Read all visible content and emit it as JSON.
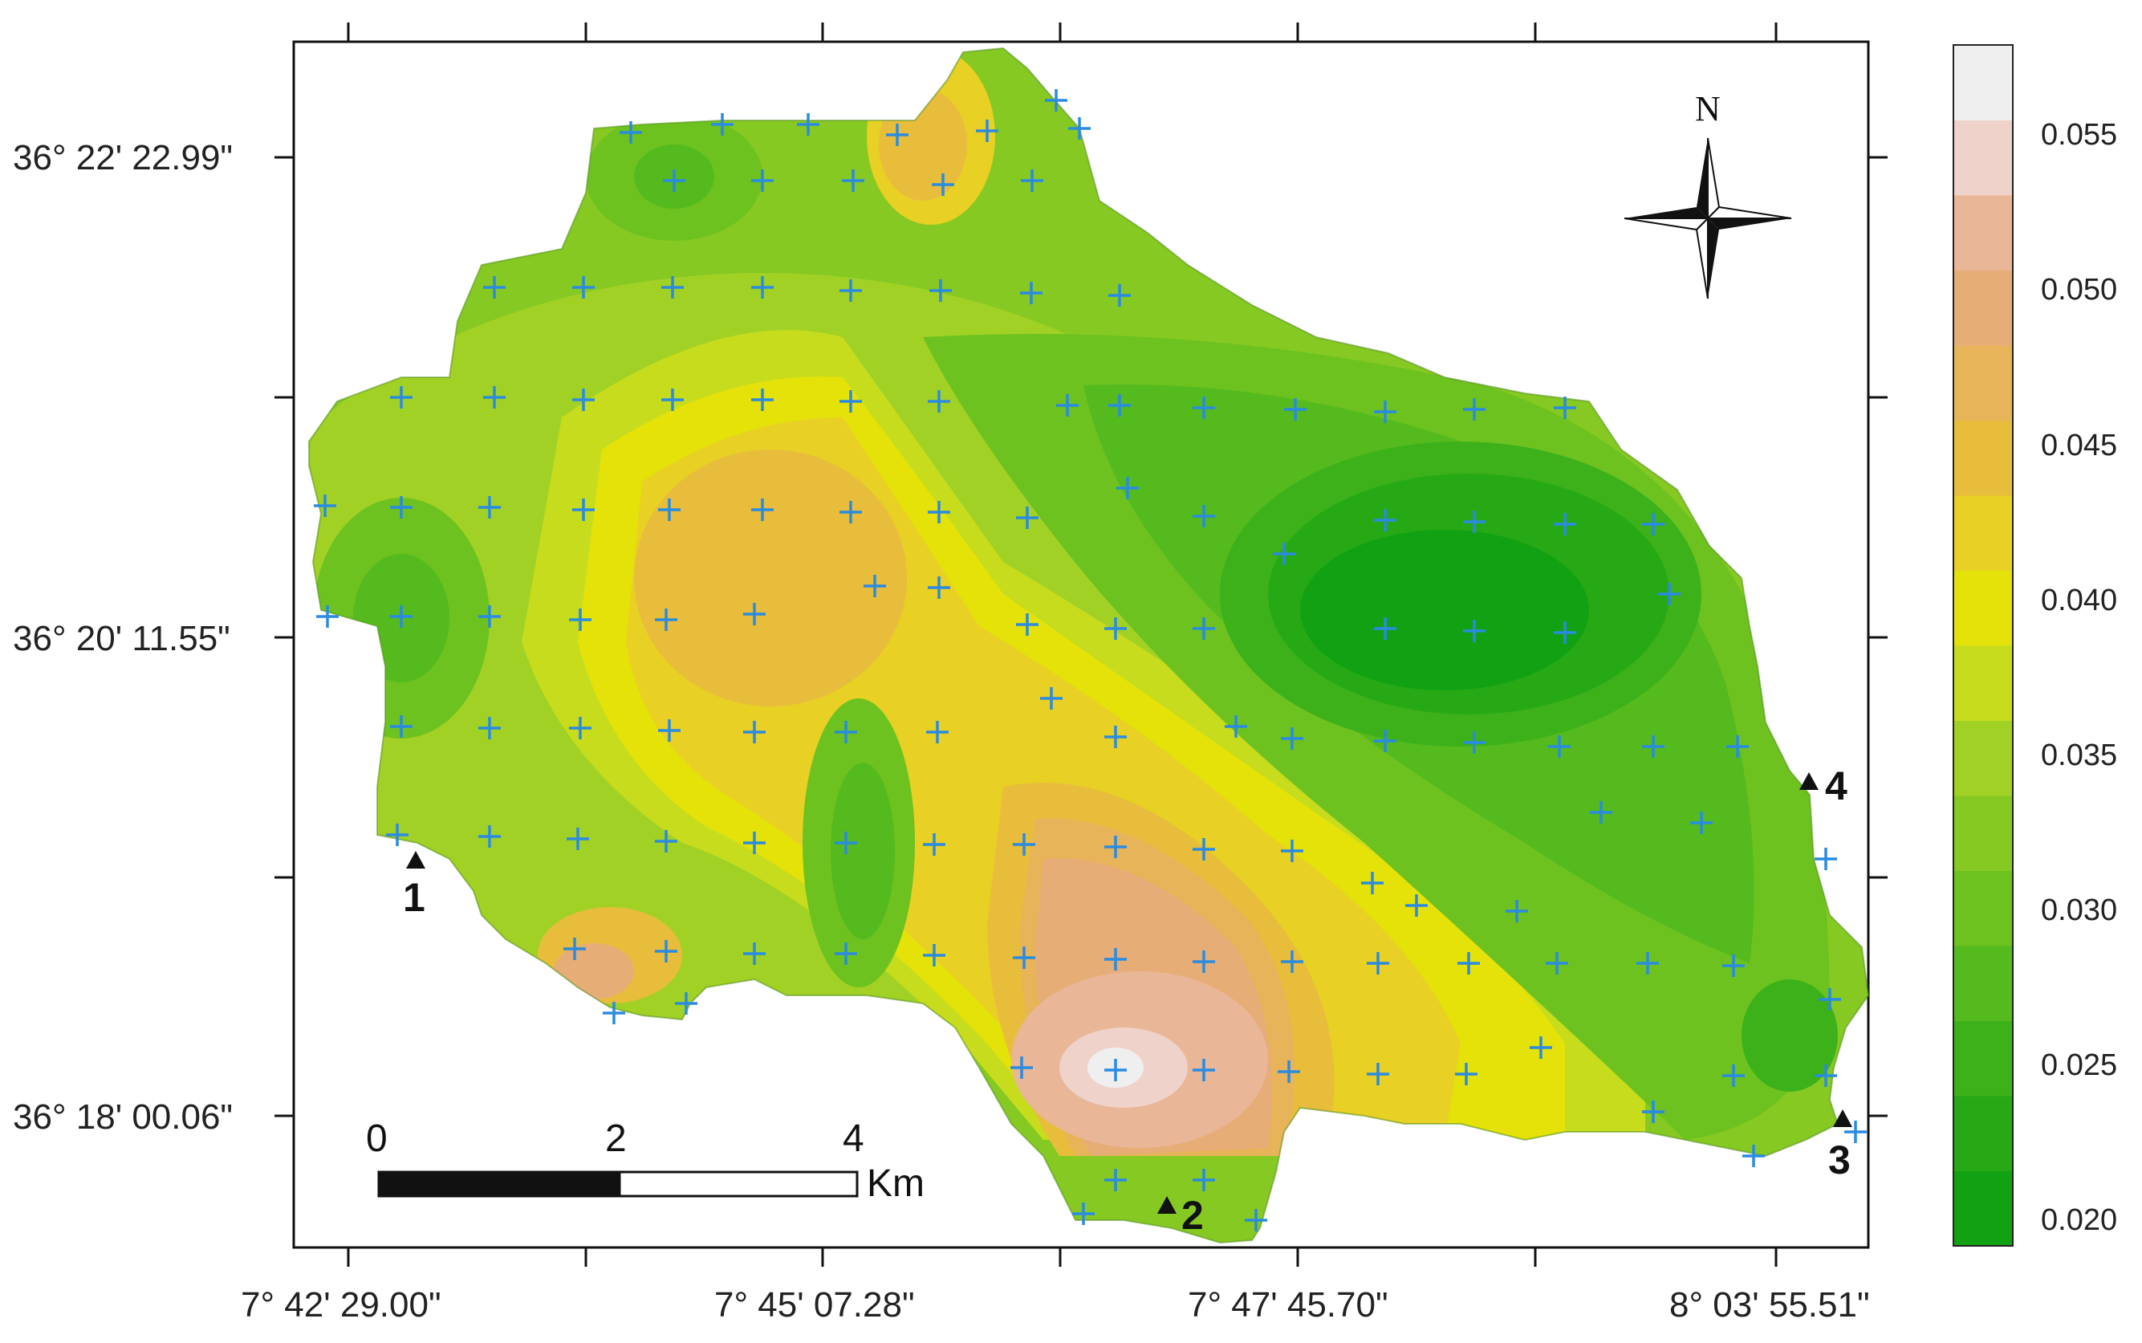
{
  "map": {
    "latitude_labels": [
      "36° 22' 22.99\"",
      "36° 20' 11.55\"",
      "36° 18' 00.06\""
    ],
    "longitude_labels": [
      "7° 42' 29.00\"",
      "7° 45' 07.28\"",
      "7° 47' 45.70\"",
      "8° 03' 55.51\""
    ],
    "stations": [
      "1",
      "2",
      "3",
      "4"
    ],
    "north_label": "N",
    "scale_bar": {
      "ticks": [
        "0",
        "2",
        "4"
      ],
      "unit": "Km"
    },
    "sample_points_marker": "+"
  },
  "legend": {
    "labels": [
      "0.055",
      "0.050",
      "0.045",
      "0.040",
      "0.035",
      "0.030",
      "0.025",
      "0.020"
    ],
    "colors": [
      "#12a112",
      "#27a916",
      "#3db11a",
      "#54ba1e",
      "#6dc21f",
      "#86c922",
      "#a2d126",
      "#c6dc1d",
      "#e5e20a",
      "#e8d024",
      "#e8bd3c",
      "#e8b45a",
      "#e7ad76",
      "#e9b698",
      "#efd2c9",
      "#efefef"
    ]
  }
}
